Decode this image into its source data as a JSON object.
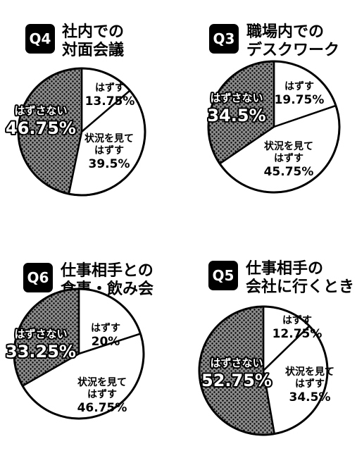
{
  "colors": {
    "dotted_fill": "#8c8c8c",
    "dot": "#000000",
    "plain_fill": "#ffffff",
    "badge": "#000000"
  },
  "chart_data": [
    {
      "type": "pie",
      "badge": "Q4",
      "title_lines": [
        "社内での",
        "対面会議"
      ],
      "slices": [
        {
          "label_lines": [
            "はずす"
          ],
          "pct_text": "13.75%",
          "value": 13.75,
          "style": "plain"
        },
        {
          "label_lines": [
            "状況を見て",
            "はずす"
          ],
          "pct_text": "39.5%",
          "value": 39.5,
          "style": "plain"
        },
        {
          "label_lines": [
            "はずさない"
          ],
          "pct_text": "46.75%",
          "value": 46.75,
          "style": "dotted"
        }
      ]
    },
    {
      "type": "pie",
      "badge": "Q3",
      "title_lines": [
        "職場内での",
        "デスクワーク"
      ],
      "slices": [
        {
          "label_lines": [
            "はずす"
          ],
          "pct_text": "19.75%",
          "value": 19.75,
          "style": "plain"
        },
        {
          "label_lines": [
            "状況を見て",
            "はずす"
          ],
          "pct_text": "45.75%",
          "value": 45.75,
          "style": "plain"
        },
        {
          "label_lines": [
            "はずさない"
          ],
          "pct_text": "34.5%",
          "value": 34.5,
          "style": "dotted"
        }
      ]
    },
    {
      "type": "pie",
      "badge": "Q6",
      "title_lines": [
        "仕事相手との",
        "食事・飲み会"
      ],
      "slices": [
        {
          "label_lines": [
            "はずす"
          ],
          "pct_text": "20%",
          "value": 20,
          "style": "plain"
        },
        {
          "label_lines": [
            "状況を見て",
            "はずす"
          ],
          "pct_text": "46.75%",
          "value": 46.75,
          "style": "plain"
        },
        {
          "label_lines": [
            "はずさない"
          ],
          "pct_text": "33.25%",
          "value": 33.25,
          "style": "dotted"
        }
      ]
    },
    {
      "type": "pie",
      "badge": "Q5",
      "title_lines": [
        "仕事相手の",
        "会社に行くとき"
      ],
      "slices": [
        {
          "label_lines": [
            "はずす"
          ],
          "pct_text": "12.75%",
          "value": 12.75,
          "style": "plain"
        },
        {
          "label_lines": [
            "状況を見て",
            "はずす"
          ],
          "pct_text": "34.5%",
          "value": 34.5,
          "style": "plain"
        },
        {
          "label_lines": [
            "はずさない"
          ],
          "pct_text": "52.75%",
          "value": 52.75,
          "style": "dotted"
        }
      ]
    }
  ]
}
